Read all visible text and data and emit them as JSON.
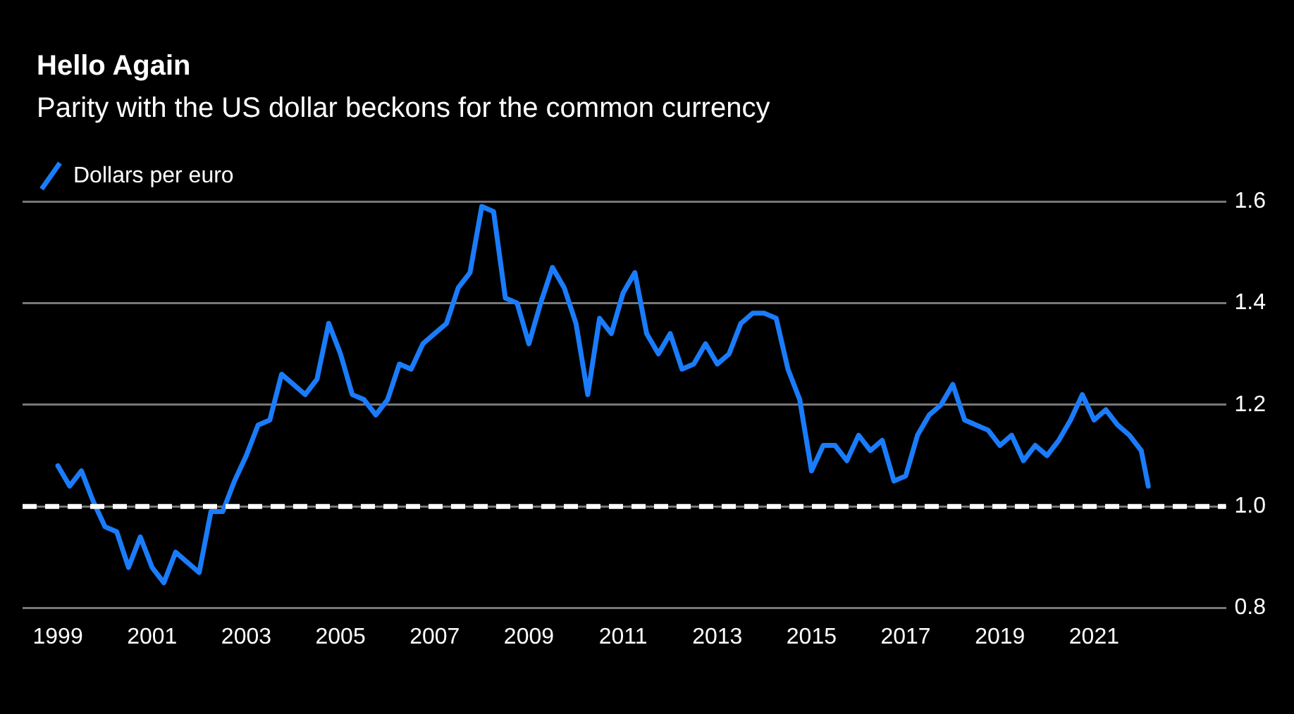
{
  "chart_data": {
    "type": "line",
    "title": "Hello Again",
    "subtitle": "Parity with the US dollar beckons for the common currency",
    "x": [
      1999,
      1999.25,
      1999.5,
      1999.75,
      2000,
      2000.25,
      2000.5,
      2000.75,
      2001,
      2001.25,
      2001.5,
      2001.75,
      2002,
      2002.25,
      2002.5,
      2002.75,
      2003,
      2003.25,
      2003.5,
      2003.75,
      2004,
      2004.25,
      2004.5,
      2004.75,
      2005,
      2005.25,
      2005.5,
      2005.75,
      2006,
      2006.25,
      2006.5,
      2006.75,
      2007,
      2007.25,
      2007.5,
      2007.75,
      2008,
      2008.25,
      2008.5,
      2008.75,
      2009,
      2009.25,
      2009.5,
      2009.75,
      2010,
      2010.25,
      2010.5,
      2010.75,
      2011,
      2011.25,
      2011.5,
      2011.75,
      2012,
      2012.25,
      2012.5,
      2012.75,
      2013,
      2013.25,
      2013.5,
      2013.75,
      2014,
      2014.25,
      2014.5,
      2014.75,
      2015,
      2015.25,
      2015.5,
      2015.75,
      2016,
      2016.25,
      2016.5,
      2016.75,
      2017,
      2017.25,
      2017.5,
      2017.75,
      2018,
      2018.25,
      2018.5,
      2018.75,
      2019,
      2019.25,
      2019.5,
      2019.75,
      2020,
      2020.25,
      2020.5,
      2020.75,
      2021,
      2021.25,
      2021.5,
      2021.75,
      2022,
      2022.15
    ],
    "series": [
      {
        "name": "Dollars per euro",
        "color": "#1a7cfa",
        "values": [
          1.08,
          1.04,
          1.07,
          1.01,
          0.96,
          0.95,
          0.88,
          0.94,
          0.88,
          0.85,
          0.91,
          0.89,
          0.87,
          0.99,
          0.99,
          1.05,
          1.1,
          1.16,
          1.17,
          1.26,
          1.24,
          1.22,
          1.25,
          1.36,
          1.3,
          1.22,
          1.21,
          1.18,
          1.21,
          1.28,
          1.27,
          1.32,
          1.34,
          1.36,
          1.43,
          1.46,
          1.59,
          1.58,
          1.41,
          1.4,
          1.32,
          1.4,
          1.47,
          1.43,
          1.36,
          1.22,
          1.37,
          1.34,
          1.42,
          1.46,
          1.34,
          1.3,
          1.34,
          1.27,
          1.28,
          1.32,
          1.28,
          1.3,
          1.36,
          1.38,
          1.38,
          1.37,
          1.27,
          1.21,
          1.07,
          1.12,
          1.12,
          1.09,
          1.14,
          1.11,
          1.13,
          1.05,
          1.06,
          1.14,
          1.18,
          1.2,
          1.24,
          1.17,
          1.16,
          1.15,
          1.12,
          1.14,
          1.09,
          1.12,
          1.1,
          1.13,
          1.17,
          1.22,
          1.17,
          1.19,
          1.16,
          1.14,
          1.11,
          1.04
        ]
      }
    ],
    "xlim": [
      1998.25,
      2023.8
    ],
    "xticks": [
      1999,
      2001,
      2003,
      2005,
      2007,
      2009,
      2011,
      2013,
      2015,
      2017,
      2019,
      2021
    ],
    "ylim": [
      0.8,
      1.6
    ],
    "yticks": [
      {
        "value": 0.8,
        "label": "0.8"
      },
      {
        "value": 1.0,
        "label": "1.0"
      },
      {
        "value": 1.2,
        "label": "1.2"
      },
      {
        "value": 1.4,
        "label": "1.4"
      },
      {
        "value": 1.6,
        "label": "1.6"
      }
    ],
    "ref_lines": [
      {
        "axis": "y",
        "value": 1.0,
        "label": null,
        "color": "#ffffff",
        "line_style": "dashed"
      }
    ],
    "grid": "y",
    "legend": "top left",
    "marker": "none",
    "line_style": "solid"
  }
}
